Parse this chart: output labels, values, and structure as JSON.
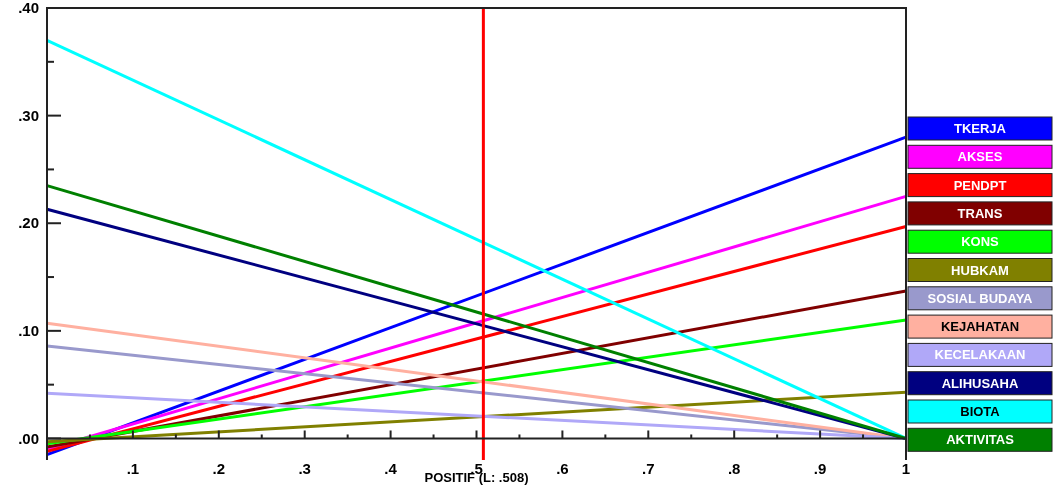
{
  "chart_data": {
    "type": "line",
    "xlabel": "POSITIF (L: .508)",
    "x": [
      0,
      1
    ],
    "xlim": [
      0,
      1
    ],
    "ylim": [
      -0.02,
      0.4
    ],
    "xticks": [
      {
        "value": 0,
        "label": null
      },
      {
        "value": 0.05,
        "label": null
      },
      {
        "value": 0.1,
        "label": ".1"
      },
      {
        "value": 0.15,
        "label": null
      },
      {
        "value": 0.2,
        "label": ".2"
      },
      {
        "value": 0.25,
        "label": null
      },
      {
        "value": 0.3,
        "label": ".3"
      },
      {
        "value": 0.35,
        "label": null
      },
      {
        "value": 0.4,
        "label": ".4"
      },
      {
        "value": 0.45,
        "label": null
      },
      {
        "value": 0.5,
        "label": ".5"
      },
      {
        "value": 0.55,
        "label": null
      },
      {
        "value": 0.6,
        "label": ".6"
      },
      {
        "value": 0.65,
        "label": null
      },
      {
        "value": 0.7,
        "label": ".7"
      },
      {
        "value": 0.75,
        "label": null
      },
      {
        "value": 0.8,
        "label": ".8"
      },
      {
        "value": 0.85,
        "label": null
      },
      {
        "value": 0.9,
        "label": ".9"
      },
      {
        "value": 0.95,
        "label": null
      },
      1
    ],
    "yticks": [
      {
        "value": 0,
        "label": ".00"
      },
      {
        "value": 0.05,
        "label": null
      },
      {
        "value": 0.1,
        "label": ".10"
      },
      {
        "value": 0.15,
        "label": null
      },
      {
        "value": 0.2,
        "label": ".20"
      },
      {
        "value": 0.25,
        "label": null
      },
      {
        "value": 0.3,
        "label": ".30"
      },
      {
        "value": 0.35,
        "label": null
      },
      {
        "value": 0.4,
        "label": ".40"
      }
    ],
    "grid": false,
    "legend": "right",
    "marker": "none",
    "line_style": "solid",
    "ref_lines": [
      {
        "axis": "x",
        "value": 0.508,
        "color": "#ff0000"
      }
    ],
    "series": [
      {
        "name": "TKERJA",
        "color": "#0000ff",
        "values": [
          -0.015,
          0.28
        ]
      },
      {
        "name": "AKSES",
        "color": "#ff00ff",
        "values": [
          -0.01,
          0.225
        ]
      },
      {
        "name": "PENDPT",
        "color": "#ff0000",
        "values": [
          -0.012,
          0.197
        ]
      },
      {
        "name": "TRANS",
        "color": "#800000",
        "values": [
          -0.008,
          0.137
        ]
      },
      {
        "name": "KONS",
        "color": "#00ff00",
        "values": [
          -0.005,
          0.11
        ]
      },
      {
        "name": "HUBKAM",
        "color": "#808000",
        "values": [
          -0.003,
          0.043
        ]
      },
      {
        "name": "SOSIAL BUDAYA",
        "color": "#9999cc",
        "values": [
          0.086,
          0
        ]
      },
      {
        "name": "KEJAHATAN",
        "color": "#ffb0a0",
        "values": [
          0.107,
          0
        ]
      },
      {
        "name": "KECELAKAAN",
        "color": "#b0a8f8",
        "values": [
          0.042,
          0
        ]
      },
      {
        "name": "ALIHUSAHA",
        "color": "#000080",
        "values": [
          0.213,
          0
        ]
      },
      {
        "name": "BIOTA",
        "color": "#00ffff",
        "values": [
          0.37,
          0
        ]
      },
      {
        "name": "AKTIVITAS",
        "color": "#008000",
        "values": [
          0.235,
          0
        ]
      }
    ]
  }
}
